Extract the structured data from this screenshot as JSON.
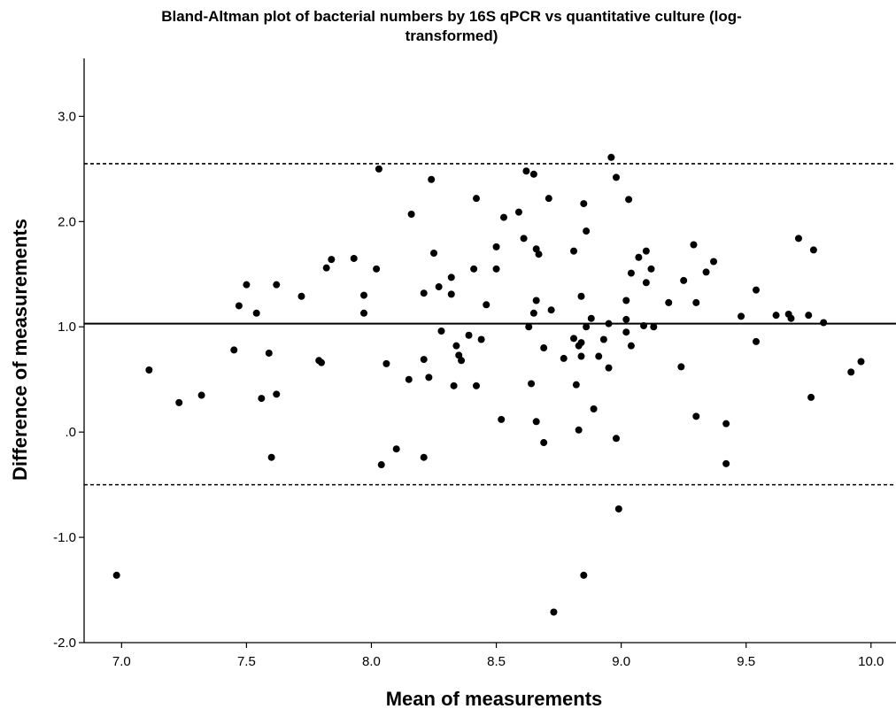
{
  "chart_data": {
    "type": "scatter",
    "title_lines": [
      "Bland-Altman plot of bacterial numbers by 16S qPCR vs quantitative culture (log-",
      "transformed)"
    ],
    "xlabel": "Mean of measurements",
    "ylabel": "Difference of measurements",
    "xlim": [
      6.85,
      10.1
    ],
    "ylim": [
      -2.0,
      3.55
    ],
    "xticks": [
      7.0,
      7.5,
      8.0,
      8.5,
      9.0,
      9.5,
      10.0
    ],
    "xtick_labels": [
      "7.0",
      "7.5",
      "8.0",
      "8.5",
      "9.0",
      "9.5",
      "10.0"
    ],
    "yticks": [
      -2.0,
      -1.0,
      0.0,
      1.0,
      2.0,
      3.0
    ],
    "ytick_labels": [
      "-2.0",
      "-1.0",
      ".0",
      "1.0",
      "2.0",
      "3.0"
    ],
    "mean_difference": 1.03,
    "upper_limit": 2.55,
    "lower_limit": -0.5,
    "grid": false,
    "points": [
      [
        6.98,
        -1.36
      ],
      [
        7.11,
        0.59
      ],
      [
        7.23,
        0.28
      ],
      [
        7.32,
        0.35
      ],
      [
        7.45,
        0.78
      ],
      [
        7.47,
        1.2
      ],
      [
        7.5,
        1.4
      ],
      [
        7.54,
        1.13
      ],
      [
        7.56,
        0.32
      ],
      [
        7.59,
        0.75
      ],
      [
        7.6,
        -0.24
      ],
      [
        7.62,
        1.4
      ],
      [
        7.62,
        0.36
      ],
      [
        7.72,
        1.29
      ],
      [
        7.79,
        0.68
      ],
      [
        7.8,
        0.66
      ],
      [
        7.82,
        1.56
      ],
      [
        7.84,
        1.64
      ],
      [
        7.93,
        1.65
      ],
      [
        7.97,
        1.3
      ],
      [
        7.97,
        1.13
      ],
      [
        8.02,
        1.55
      ],
      [
        8.03,
        2.5
      ],
      [
        8.04,
        -0.31
      ],
      [
        8.06,
        0.65
      ],
      [
        8.1,
        -0.16
      ],
      [
        8.15,
        0.5
      ],
      [
        8.16,
        2.07
      ],
      [
        8.21,
        1.32
      ],
      [
        8.21,
        -0.24
      ],
      [
        8.21,
        0.69
      ],
      [
        8.23,
        0.52
      ],
      [
        8.24,
        2.4
      ],
      [
        8.25,
        1.7
      ],
      [
        8.27,
        1.38
      ],
      [
        8.28,
        0.96
      ],
      [
        8.32,
        1.31
      ],
      [
        8.32,
        1.47
      ],
      [
        8.33,
        0.44
      ],
      [
        8.34,
        0.82
      ],
      [
        8.35,
        0.73
      ],
      [
        8.36,
        0.68
      ],
      [
        8.39,
        0.92
      ],
      [
        8.41,
        1.55
      ],
      [
        8.42,
        2.22
      ],
      [
        8.42,
        0.44
      ],
      [
        8.44,
        0.88
      ],
      [
        8.46,
        1.21
      ],
      [
        8.5,
        1.76
      ],
      [
        8.5,
        1.55
      ],
      [
        8.52,
        0.12
      ],
      [
        8.53,
        2.04
      ],
      [
        8.59,
        2.09
      ],
      [
        8.61,
        1.84
      ],
      [
        8.62,
        2.48
      ],
      [
        8.63,
        1.0
      ],
      [
        8.64,
        0.46
      ],
      [
        8.65,
        2.45
      ],
      [
        8.65,
        1.13
      ],
      [
        8.66,
        1.25
      ],
      [
        8.66,
        1.74
      ],
      [
        8.66,
        0.1
      ],
      [
        8.67,
        1.69
      ],
      [
        8.69,
        0.8
      ],
      [
        8.69,
        -0.1
      ],
      [
        8.71,
        2.22
      ],
      [
        8.72,
        1.16
      ],
      [
        8.73,
        -1.71
      ],
      [
        8.77,
        0.7
      ],
      [
        8.81,
        1.72
      ],
      [
        8.81,
        0.89
      ],
      [
        8.82,
        0.45
      ],
      [
        8.83,
        0.82
      ],
      [
        8.83,
        0.02
      ],
      [
        8.84,
        1.29
      ],
      [
        8.84,
        0.72
      ],
      [
        8.84,
        0.85
      ],
      [
        8.85,
        -1.36
      ],
      [
        8.85,
        2.17
      ],
      [
        8.86,
        1.91
      ],
      [
        8.86,
        1.0
      ],
      [
        8.88,
        1.08
      ],
      [
        8.89,
        0.22
      ],
      [
        8.91,
        0.72
      ],
      [
        8.93,
        0.88
      ],
      [
        8.95,
        1.03
      ],
      [
        8.95,
        0.61
      ],
      [
        8.96,
        2.61
      ],
      [
        8.98,
        2.42
      ],
      [
        8.98,
        -0.06
      ],
      [
        8.99,
        -0.73
      ],
      [
        9.02,
        0.95
      ],
      [
        9.02,
        1.25
      ],
      [
        9.02,
        1.07
      ],
      [
        9.03,
        2.21
      ],
      [
        9.04,
        1.51
      ],
      [
        9.04,
        0.82
      ],
      [
        9.07,
        1.66
      ],
      [
        9.09,
        1.01
      ],
      [
        9.1,
        1.72
      ],
      [
        9.1,
        1.42
      ],
      [
        9.12,
        1.55
      ],
      [
        9.13,
        1.0
      ],
      [
        9.19,
        1.23
      ],
      [
        9.24,
        0.62
      ],
      [
        9.25,
        1.44
      ],
      [
        9.29,
        1.78
      ],
      [
        9.3,
        1.23
      ],
      [
        9.3,
        0.15
      ],
      [
        9.34,
        1.52
      ],
      [
        9.37,
        1.62
      ],
      [
        9.42,
        0.08
      ],
      [
        9.42,
        -0.3
      ],
      [
        9.48,
        1.1
      ],
      [
        9.54,
        0.86
      ],
      [
        9.54,
        1.35
      ],
      [
        9.62,
        1.11
      ],
      [
        9.67,
        1.12
      ],
      [
        9.68,
        1.08
      ],
      [
        9.71,
        1.84
      ],
      [
        9.75,
        1.11
      ],
      [
        9.76,
        0.33
      ],
      [
        9.77,
        1.73
      ],
      [
        9.81,
        1.04
      ],
      [
        9.92,
        0.57
      ],
      [
        9.96,
        0.67
      ]
    ]
  }
}
